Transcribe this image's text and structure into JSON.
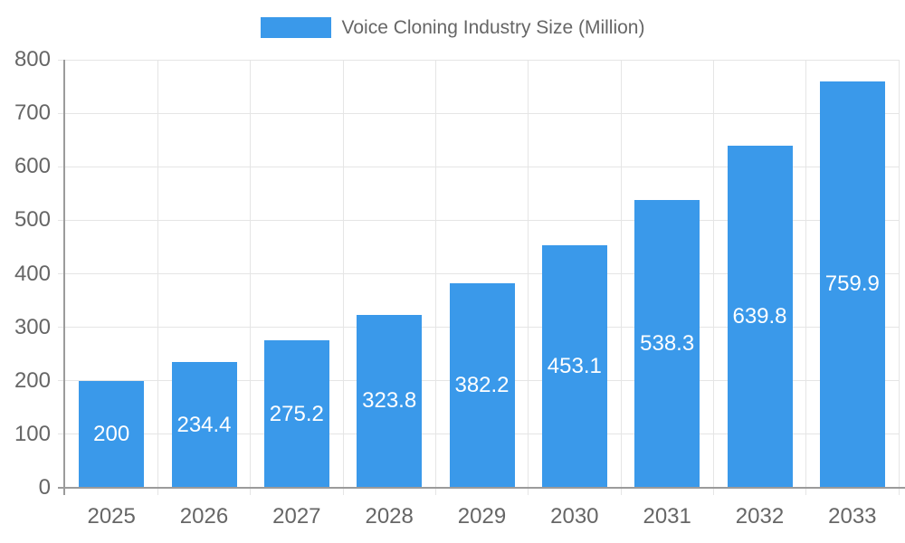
{
  "chart_data": {
    "type": "bar",
    "title": "Voice Cloning Industry Size (Million)",
    "legend": [
      "Voice Cloning Industry Size (Million)"
    ],
    "legend_position": "top-center",
    "categories": [
      "2025",
      "2026",
      "2027",
      "2028",
      "2029",
      "2030",
      "2031",
      "2032",
      "2033"
    ],
    "values": [
      200,
      234.4,
      275.2,
      323.8,
      382.2,
      453.1,
      538.3,
      639.8,
      759.9
    ],
    "value_labels": [
      "200",
      "234.4",
      "275.2",
      "323.8",
      "382.2",
      "453.1",
      "538.3",
      "639.8",
      "759.9"
    ],
    "xlabel": "",
    "ylabel": "",
    "ylim": [
      0,
      800
    ],
    "ytick_step": 100,
    "ytick_labels": [
      "0",
      "100",
      "200",
      "300",
      "400",
      "500",
      "600",
      "700",
      "800"
    ],
    "grid": true,
    "colors": {
      "bar": "#3A99EA",
      "value_label": "#FFFFFF",
      "axis_text": "#666666",
      "grid_line": "#E5E5E5",
      "axis_line": "#9B9B9B",
      "background": "#FFFFFF"
    }
  }
}
